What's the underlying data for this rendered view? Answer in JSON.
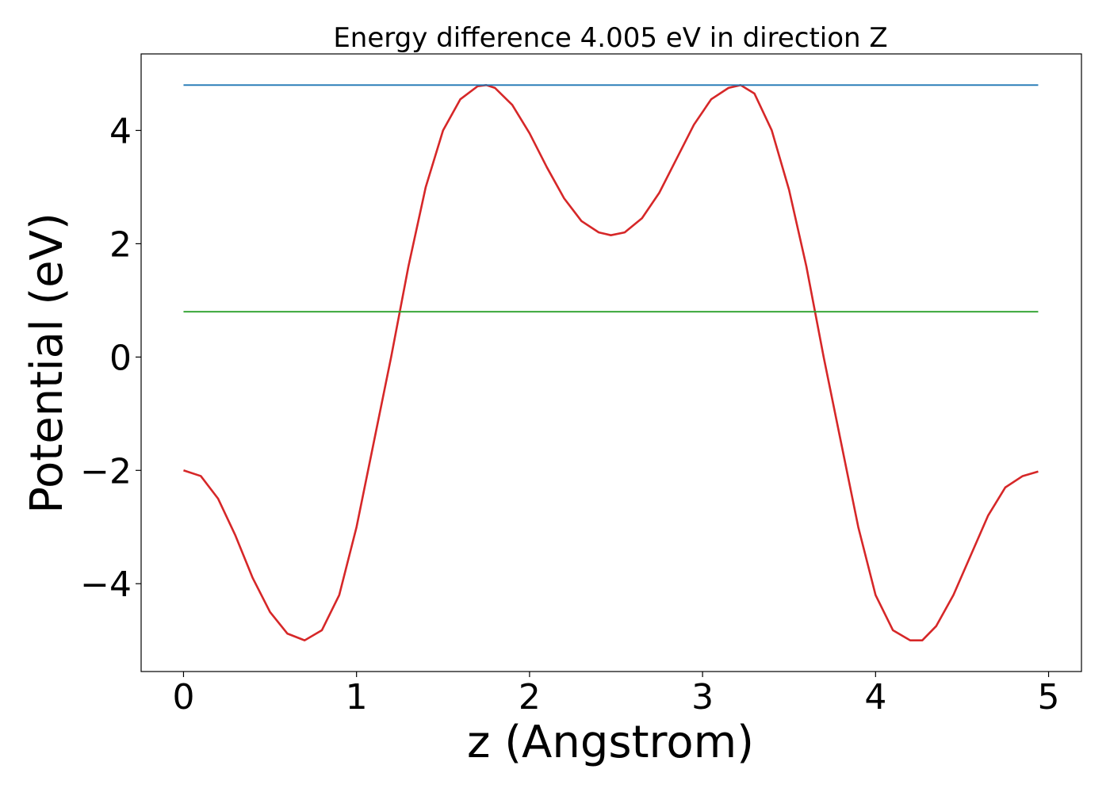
{
  "chart_data": {
    "type": "line",
    "title": "Energy difference 4.005 eV in direction Z",
    "xlabel": "z (Angstrom)",
    "ylabel": "Potential (eV)",
    "xlim": [
      -0.245,
      5.19
    ],
    "ylim": [
      -5.55,
      5.35
    ],
    "x_ticks": [
      0,
      1,
      2,
      3,
      4,
      5
    ],
    "x_tick_labels": [
      "0",
      "1",
      "2",
      "3",
      "4",
      "5"
    ],
    "y_ticks": [
      -4,
      -2,
      0,
      2,
      4
    ],
    "y_tick_labels": [
      "−4",
      "−2",
      "0",
      "2",
      "4"
    ],
    "grid": false,
    "series": [
      {
        "color": "#d62728",
        "x": [
          0.0,
          0.1,
          0.2,
          0.3,
          0.4,
          0.5,
          0.6,
          0.7,
          0.8,
          0.9,
          1.0,
          1.1,
          1.2,
          1.3,
          1.4,
          1.5,
          1.6,
          1.7,
          1.75,
          1.8,
          1.9,
          2.0,
          2.1,
          2.2,
          2.3,
          2.4,
          2.47,
          2.55,
          2.65,
          2.75,
          2.85,
          2.95,
          3.05,
          3.15,
          3.22,
          3.3,
          3.4,
          3.5,
          3.6,
          3.7,
          3.8,
          3.9,
          4.0,
          4.1,
          4.2,
          4.27,
          4.35,
          4.45,
          4.55,
          4.65,
          4.75,
          4.85,
          4.94
        ],
        "y": [
          -2.0,
          -2.1,
          -2.5,
          -3.15,
          -3.9,
          -4.5,
          -4.88,
          -5.0,
          -4.82,
          -4.2,
          -3.0,
          -1.5,
          0.0,
          1.6,
          3.0,
          4.0,
          4.55,
          4.78,
          4.8,
          4.75,
          4.45,
          3.95,
          3.35,
          2.8,
          2.4,
          2.2,
          2.15,
          2.2,
          2.45,
          2.9,
          3.5,
          4.1,
          4.55,
          4.75,
          4.8,
          4.65,
          4.0,
          2.95,
          1.6,
          0.0,
          -1.5,
          -3.0,
          -4.2,
          -4.82,
          -5.0,
          -5.0,
          -4.75,
          -4.2,
          -3.5,
          -2.8,
          -2.3,
          -2.1,
          -2.02
        ]
      },
      {
        "color": "#1f77b4",
        "x": [
          0.0,
          4.94
        ],
        "y": [
          4.8,
          4.8
        ]
      },
      {
        "color": "#2ca02c",
        "x": [
          0.0,
          4.94
        ],
        "y": [
          0.8,
          0.8
        ]
      }
    ]
  }
}
